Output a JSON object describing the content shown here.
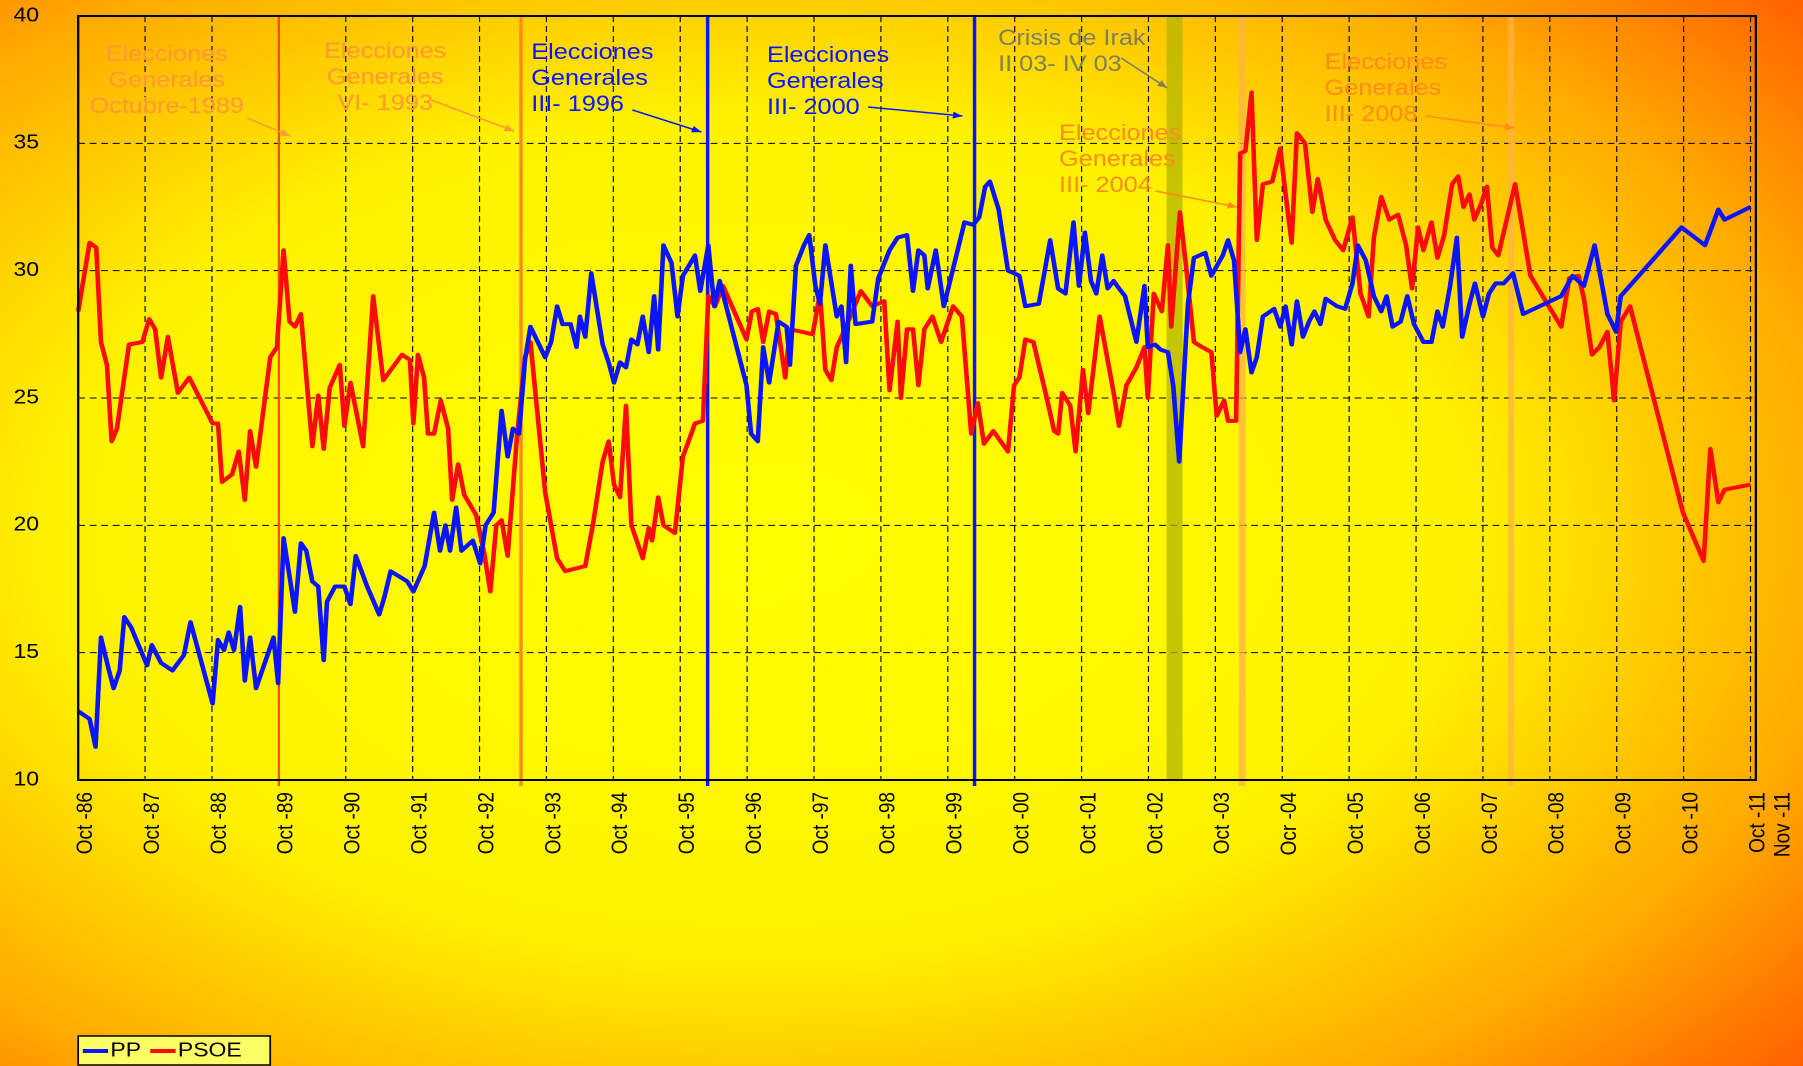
{
  "chart_data": {
    "type": "line",
    "xlim": [
      1986.75,
      2011.83
    ],
    "ylim": [
      10,
      40
    ],
    "yticks": [
      10,
      15,
      20,
      25,
      30,
      35,
      40
    ],
    "xticks": [
      {
        "value": 1986.75,
        "label": "Oct -86"
      },
      {
        "value": 1987.75,
        "label": "Oct -87"
      },
      {
        "value": 1988.75,
        "label": "Oct -88"
      },
      {
        "value": 1989.75,
        "label": "Oct -89"
      },
      {
        "value": 1990.75,
        "label": "Oct -90"
      },
      {
        "value": 1991.75,
        "label": "Oct -91"
      },
      {
        "value": 1992.75,
        "label": "Oct -92"
      },
      {
        "value": 1993.75,
        "label": "Oct -93"
      },
      {
        "value": 1994.75,
        "label": "Oct -94"
      },
      {
        "value": 1995.75,
        "label": "Oct -95"
      },
      {
        "value": 1996.75,
        "label": "Oct -96"
      },
      {
        "value": 1997.75,
        "label": "Oct -97"
      },
      {
        "value": 1998.75,
        "label": "Oct -98"
      },
      {
        "value": 1999.75,
        "label": "Oct -99"
      },
      {
        "value": 2000.75,
        "label": "Oct -00"
      },
      {
        "value": 2001.75,
        "label": "Oct -01"
      },
      {
        "value": 2002.75,
        "label": "Oct -02"
      },
      {
        "value": 2003.75,
        "label": "Oct -03"
      },
      {
        "value": 2004.75,
        "label": "Ocr -04"
      },
      {
        "value": 2005.75,
        "label": "Oct -05"
      },
      {
        "value": 2006.75,
        "label": "Oct -06"
      },
      {
        "value": 2007.75,
        "label": "Oct -07"
      },
      {
        "value": 2008.75,
        "label": "Oct -08"
      },
      {
        "value": 2009.75,
        "label": "Oct -09"
      },
      {
        "value": 2010.75,
        "label": "Oct -10"
      },
      {
        "value": 2011.75,
        "label": "Oct -11"
      },
      {
        "value": 2011.83,
        "label": "Nov -11"
      }
    ],
    "grid": true,
    "series": [
      {
        "name": "PP",
        "color": "#0a14ff",
        "x": [
          1986.75,
          1986.92,
          1987.01,
          1987.09,
          1987.2,
          1987.28,
          1987.37,
          1987.44,
          1987.54,
          1987.78,
          1987.85,
          1987.99,
          1988.16,
          1988.33,
          1988.43,
          1988.76,
          1988.84,
          1988.93,
          1989.0,
          1989.08,
          1989.17,
          1989.24,
          1989.32,
          1989.41,
          1989.67,
          1989.74,
          1989.82,
          1989.91,
          1989.99,
          1990.08,
          1990.16,
          1990.25,
          1990.34,
          1990.42,
          1990.47,
          1990.59,
          1990.73,
          1990.82,
          1990.9,
          1991.07,
          1991.25,
          1991.33,
          1991.42,
          1991.67,
          1991.76,
          1991.93,
          1992.07,
          1992.16,
          1992.24,
          1992.31,
          1992.4,
          1992.48,
          1992.65,
          1992.76,
          1992.84,
          1992.96,
          1993.08,
          1993.17,
          1993.25,
          1993.34,
          1993.43,
          1993.51,
          1993.73,
          1993.82,
          1993.91,
          1993.99,
          1994.11,
          1994.2,
          1994.25,
          1994.33,
          1994.42,
          1994.59,
          1994.68,
          1994.76,
          1994.85,
          1994.94,
          1995.02,
          1995.11,
          1995.19,
          1995.28,
          1995.36,
          1995.42,
          1995.5,
          1995.62,
          1995.71,
          1995.79,
          1995.97,
          1996.05,
          1996.17,
          1996.26,
          1996.34,
          1996.74,
          1996.81,
          1996.91,
          1996.99,
          1997.08,
          1997.22,
          1997.34,
          1997.39,
          1997.48,
          1997.6,
          1997.68,
          1997.77,
          1997.84,
          1997.92,
          1998.09,
          1998.16,
          1998.23,
          1998.3,
          1998.37,
          1998.62,
          1998.71,
          1998.88,
          1999.0,
          1999.14,
          1999.23,
          1999.31,
          1999.4,
          1999.45,
          1999.57,
          1999.69,
          2000.0,
          2000.13,
          2000.22,
          2000.31,
          2000.38,
          2000.51,
          2000.65,
          2000.74,
          2000.82,
          2000.91,
          2001.11,
          2001.2,
          2001.28,
          2001.4,
          2001.51,
          2001.63,
          2001.71,
          2001.8,
          2001.89,
          2001.97,
          2002.06,
          2002.14,
          2002.23,
          2002.31,
          2002.4,
          2002.57,
          2002.69,
          2002.74,
          2002.85,
          2002.93,
          2003.04,
          2003.12,
          2003.21,
          2003.34,
          2003.43,
          2003.6,
          2003.69,
          2003.86,
          2003.94,
          2004.03,
          2004.12,
          2004.2,
          2004.29,
          2004.37,
          2004.46,
          2004.63,
          2004.72,
          2004.8,
          2004.89,
          2004.97,
          2005.06,
          2005.15,
          2005.23,
          2005.32,
          2005.4,
          2005.57,
          2005.69,
          2005.8,
          2005.88,
          2006.0,
          2006.12,
          2006.23,
          2006.31,
          2006.4,
          2006.52,
          2006.62,
          2006.72,
          2006.86,
          2006.98,
          2007.07,
          2007.15,
          2007.26,
          2007.36,
          2007.44,
          2007.55,
          2007.63,
          2007.75,
          2007.84,
          2007.94,
          2008.06,
          2008.2,
          2008.35,
          2008.92,
          2009.09,
          2009.26,
          2009.42,
          2009.52,
          2009.61,
          2009.74,
          2009.81,
          2010.72,
          2011.07,
          2011.27,
          2011.36,
          2011.75
        ],
        "values": [
          12.7,
          12.4,
          11.3,
          15.6,
          14.4,
          13.6,
          14.3,
          16.4,
          16.0,
          14.5,
          15.3,
          14.6,
          14.3,
          14.9,
          16.2,
          13.0,
          15.5,
          15.1,
          15.8,
          15.1,
          16.8,
          13.9,
          15.6,
          13.6,
          15.6,
          13.8,
          19.5,
          18.0,
          16.6,
          19.3,
          19.0,
          17.8,
          17.6,
          14.7,
          17.0,
          17.6,
          17.6,
          16.9,
          18.8,
          17.6,
          16.5,
          17.2,
          18.2,
          17.8,
          17.4,
          18.4,
          20.5,
          19.0,
          20.0,
          19.0,
          20.7,
          19.0,
          19.4,
          18.5,
          20.0,
          20.5,
          24.5,
          22.7,
          23.8,
          23.6,
          26.5,
          27.8,
          26.6,
          27.2,
          28.6,
          27.9,
          27.9,
          27.0,
          28.2,
          27.4,
          29.9,
          27.1,
          26.4,
          25.6,
          26.4,
          26.2,
          27.3,
          27.1,
          28.2,
          26.8,
          29.0,
          26.9,
          31.0,
          30.3,
          28.2,
          29.8,
          30.6,
          29.2,
          31.0,
          28.6,
          29.6,
          25.5,
          23.6,
          23.3,
          27.0,
          25.6,
          28.0,
          27.8,
          26.3,
          30.2,
          31.0,
          31.4,
          29.4,
          28.7,
          31.0,
          28.2,
          28.6,
          26.4,
          30.2,
          27.9,
          28.0,
          29.7,
          30.8,
          31.3,
          31.4,
          29.2,
          30.8,
          30.6,
          29.3,
          30.8,
          28.6,
          31.9,
          31.8,
          32.1,
          33.3,
          33.5,
          32.4,
          30.0,
          29.9,
          29.8,
          28.6,
          28.7,
          30.0,
          31.2,
          29.3,
          29.1,
          31.9,
          29.4,
          31.5,
          29.6,
          29.1,
          30.6,
          29.3,
          29.6,
          29.3,
          29.0,
          27.2,
          29.4,
          27.0,
          27.1,
          26.9,
          26.8,
          25.5,
          22.5,
          28.7,
          30.5,
          30.7,
          29.8,
          30.6,
          31.2,
          30.4,
          26.8,
          27.7,
          26.0,
          26.6,
          28.2,
          28.5,
          27.8,
          28.6,
          27.1,
          28.8,
          27.4,
          28.0,
          28.4,
          27.9,
          28.9,
          28.6,
          28.5,
          29.5,
          31.0,
          30.4,
          29.0,
          28.4,
          29.0,
          27.8,
          28.0,
          29.0,
          27.9,
          27.2,
          27.2,
          28.4,
          27.8,
          29.4,
          31.3,
          27.4,
          28.7,
          29.5,
          28.2,
          29.1,
          29.5,
          29.5,
          29.9,
          28.3,
          29.0,
          29.8,
          29.4,
          31.0,
          29.6,
          28.3,
          27.6,
          29.0,
          31.7,
          31.0,
          32.4,
          32.0,
          32.5
        ]
      },
      {
        "name": "PSOE",
        "color": "#ff0a0a",
        "x": [
          1986.75,
          1986.92,
          1987.02,
          1987.09,
          1987.18,
          1987.25,
          1987.33,
          1987.51,
          1987.71,
          1987.81,
          1987.9,
          1987.99,
          1988.09,
          1988.24,
          1988.41,
          1988.76,
          1988.84,
          1988.9,
          1989.05,
          1989.15,
          1989.24,
          1989.32,
          1989.41,
          1989.62,
          1989.72,
          1989.82,
          1989.91,
          1989.99,
          1990.08,
          1990.25,
          1990.34,
          1990.42,
          1990.51,
          1990.66,
          1990.73,
          1990.82,
          1991.01,
          1991.16,
          1991.31,
          1991.59,
          1991.71,
          1991.76,
          1991.83,
          1991.92,
          1991.98,
          1992.07,
          1992.17,
          1992.28,
          1992.34,
          1992.43,
          1992.52,
          1992.7,
          1992.82,
          1992.91,
          1993.0,
          1993.08,
          1993.17,
          1993.31,
          1993.43,
          1993.51,
          1993.73,
          1993.91,
          1994.03,
          1994.33,
          1994.45,
          1994.59,
          1994.68,
          1994.76,
          1994.85,
          1994.94,
          1995.02,
          1995.19,
          1995.28,
          1995.33,
          1995.42,
          1995.5,
          1995.67,
          1995.79,
          1995.97,
          1996.09,
          1996.17,
          1996.27,
          1996.39,
          1996.74,
          1996.82,
          1996.91,
          1996.99,
          1997.08,
          1997.18,
          1997.32,
          1997.39,
          1997.73,
          1997.84,
          1997.92,
          1998.01,
          1998.09,
          1998.23,
          1998.45,
          1998.62,
          1998.8,
          1998.88,
          1999.0,
          1999.05,
          1999.14,
          1999.23,
          1999.31,
          1999.4,
          1999.52,
          1999.65,
          1999.83,
          1999.96,
          2000.1,
          2000.2,
          2000.29,
          2000.43,
          2000.65,
          2000.74,
          2000.82,
          2000.91,
          2001.03,
          2001.22,
          2001.34,
          2001.4,
          2001.46,
          2001.58,
          2001.66,
          2001.77,
          2001.85,
          2002.02,
          2002.23,
          2002.31,
          2002.42,
          2002.57,
          2002.69,
          2002.74,
          2002.83,
          2002.95,
          2003.04,
          2003.09,
          2003.22,
          2003.31,
          2003.43,
          2003.55,
          2003.69,
          2003.77,
          2003.88,
          2003.94,
          2004.06,
          2004.12,
          2004.2,
          2004.29,
          2004.37,
          2004.46,
          2004.6,
          2004.72,
          2004.8,
          2004.89,
          2004.97,
          2005.09,
          2005.2,
          2005.28,
          2005.4,
          2005.54,
          2005.66,
          2005.8,
          2005.92,
          2006.04,
          2006.12,
          2006.23,
          2006.35,
          2006.48,
          2006.6,
          2006.69,
          2006.78,
          2006.86,
          2006.98,
          2007.07,
          2007.17,
          2007.29,
          2007.38,
          2007.46,
          2007.55,
          2007.62,
          2007.72,
          2007.81,
          2007.89,
          2007.98,
          2008.15,
          2008.23,
          2008.32,
          2008.46,
          2008.92,
          2009.04,
          2009.18,
          2009.26,
          2009.38,
          2009.49,
          2009.61,
          2009.71,
          2009.81,
          2009.95,
          2010.74,
          2011.05,
          2011.15,
          2011.27,
          2011.36,
          2011.75
        ],
        "values": [
          28.4,
          31.1,
          30.9,
          27.2,
          26.3,
          23.3,
          23.8,
          27.1,
          27.2,
          28.1,
          27.7,
          25.8,
          27.4,
          25.2,
          25.8,
          24.0,
          24.0,
          21.7,
          22.0,
          22.9,
          21.0,
          23.7,
          22.3,
          26.6,
          27.0,
          30.8,
          28.0,
          27.8,
          28.3,
          23.1,
          25.1,
          23.0,
          25.4,
          26.3,
          23.9,
          25.6,
          23.1,
          29.0,
          25.7,
          26.7,
          26.5,
          24.0,
          26.7,
          25.8,
          23.6,
          23.6,
          24.9,
          23.8,
          21.0,
          22.4,
          21.2,
          20.4,
          18.9,
          17.4,
          20.0,
          20.2,
          18.8,
          23.5,
          26.6,
          27.2,
          21.3,
          18.7,
          18.2,
          18.4,
          20.1,
          22.5,
          23.3,
          21.6,
          21.1,
          24.7,
          20.0,
          18.7,
          19.9,
          19.4,
          21.1,
          20.0,
          19.7,
          22.7,
          24.0,
          24.1,
          29.0,
          28.6,
          29.4,
          27.3,
          28.4,
          28.5,
          27.2,
          28.4,
          28.3,
          25.8,
          27.7,
          27.5,
          29.1,
          26.1,
          25.7,
          27.0,
          27.8,
          29.2,
          28.6,
          28.8,
          25.3,
          28.0,
          25.0,
          27.7,
          27.7,
          25.5,
          27.7,
          28.2,
          27.2,
          28.6,
          28.2,
          23.6,
          24.8,
          23.2,
          23.7,
          22.9,
          25.5,
          25.8,
          27.3,
          27.2,
          25.1,
          23.7,
          23.6,
          25.2,
          24.7,
          22.9,
          26.1,
          24.4,
          28.2,
          25.2,
          23.9,
          25.5,
          26.2,
          27.0,
          25.0,
          29.1,
          28.4,
          31.0,
          27.8,
          32.3,
          30.2,
          27.2,
          27.0,
          26.8,
          24.3,
          24.9,
          24.1,
          24.1,
          34.6,
          34.7,
          37.0,
          31.2,
          33.4,
          33.5,
          34.8,
          33.0,
          31.1,
          35.4,
          35.0,
          32.3,
          33.6,
          32.0,
          31.2,
          30.8,
          32.1,
          29.1,
          28.2,
          31.3,
          32.9,
          32.0,
          32.2,
          31.0,
          29.3,
          31.7,
          30.8,
          31.9,
          30.5,
          31.4,
          33.4,
          33.7,
          32.5,
          33.0,
          32.0,
          32.6,
          33.3,
          30.9,
          30.6,
          32.5,
          33.4,
          32.0,
          29.8,
          27.8,
          29.7,
          29.8,
          28.9,
          26.7,
          27.0,
          27.6,
          24.9,
          28.0,
          28.6,
          20.5,
          18.6,
          23.0,
          20.9,
          21.4,
          21.6
        ]
      }
    ],
    "events": [
      {
        "x": 1989.75,
        "color": "#ff4a00"
      },
      {
        "x": 1993.37,
        "color": "#ff8c1a"
      },
      {
        "x": 1996.16,
        "color": "#0a14ff"
      },
      {
        "x": 2000.15,
        "color": "#0a14ff"
      },
      {
        "x0": 2003.02,
        "x1": 2003.26,
        "color": "#b4b400"
      },
      {
        "x": 2004.15,
        "color": "#ffb347"
      },
      {
        "x": 2008.17,
        "color": "#ffb347"
      }
    ],
    "annotations": [
      {
        "lines": [
          "Elecciones",
          "Generales",
          "Octubre-1989"
        ],
        "color": "#ff9a33"
      },
      {
        "lines": [
          "Elecciones",
          "Generales",
          "VI- 1993"
        ],
        "color": "#ff9a33"
      },
      {
        "lines": [
          "Elecciones",
          "Generales",
          "III- 1996"
        ],
        "color": "#0a14ff"
      },
      {
        "lines": [
          "Elecciones",
          "Generales",
          "III- 2000"
        ],
        "color": "#0a14ff"
      },
      {
        "lines": [
          "Crisis de Irak",
          "II 03- IV 03"
        ],
        "color": "#7f7f5a"
      },
      {
        "lines": [
          "Elecciones",
          "Generales",
          "III- 2004"
        ],
        "color": "#ff8c1a"
      },
      {
        "lines": [
          "Elecciones",
          "Generales",
          "III- 2008"
        ],
        "color": "#ff8c1a"
      }
    ]
  }
}
